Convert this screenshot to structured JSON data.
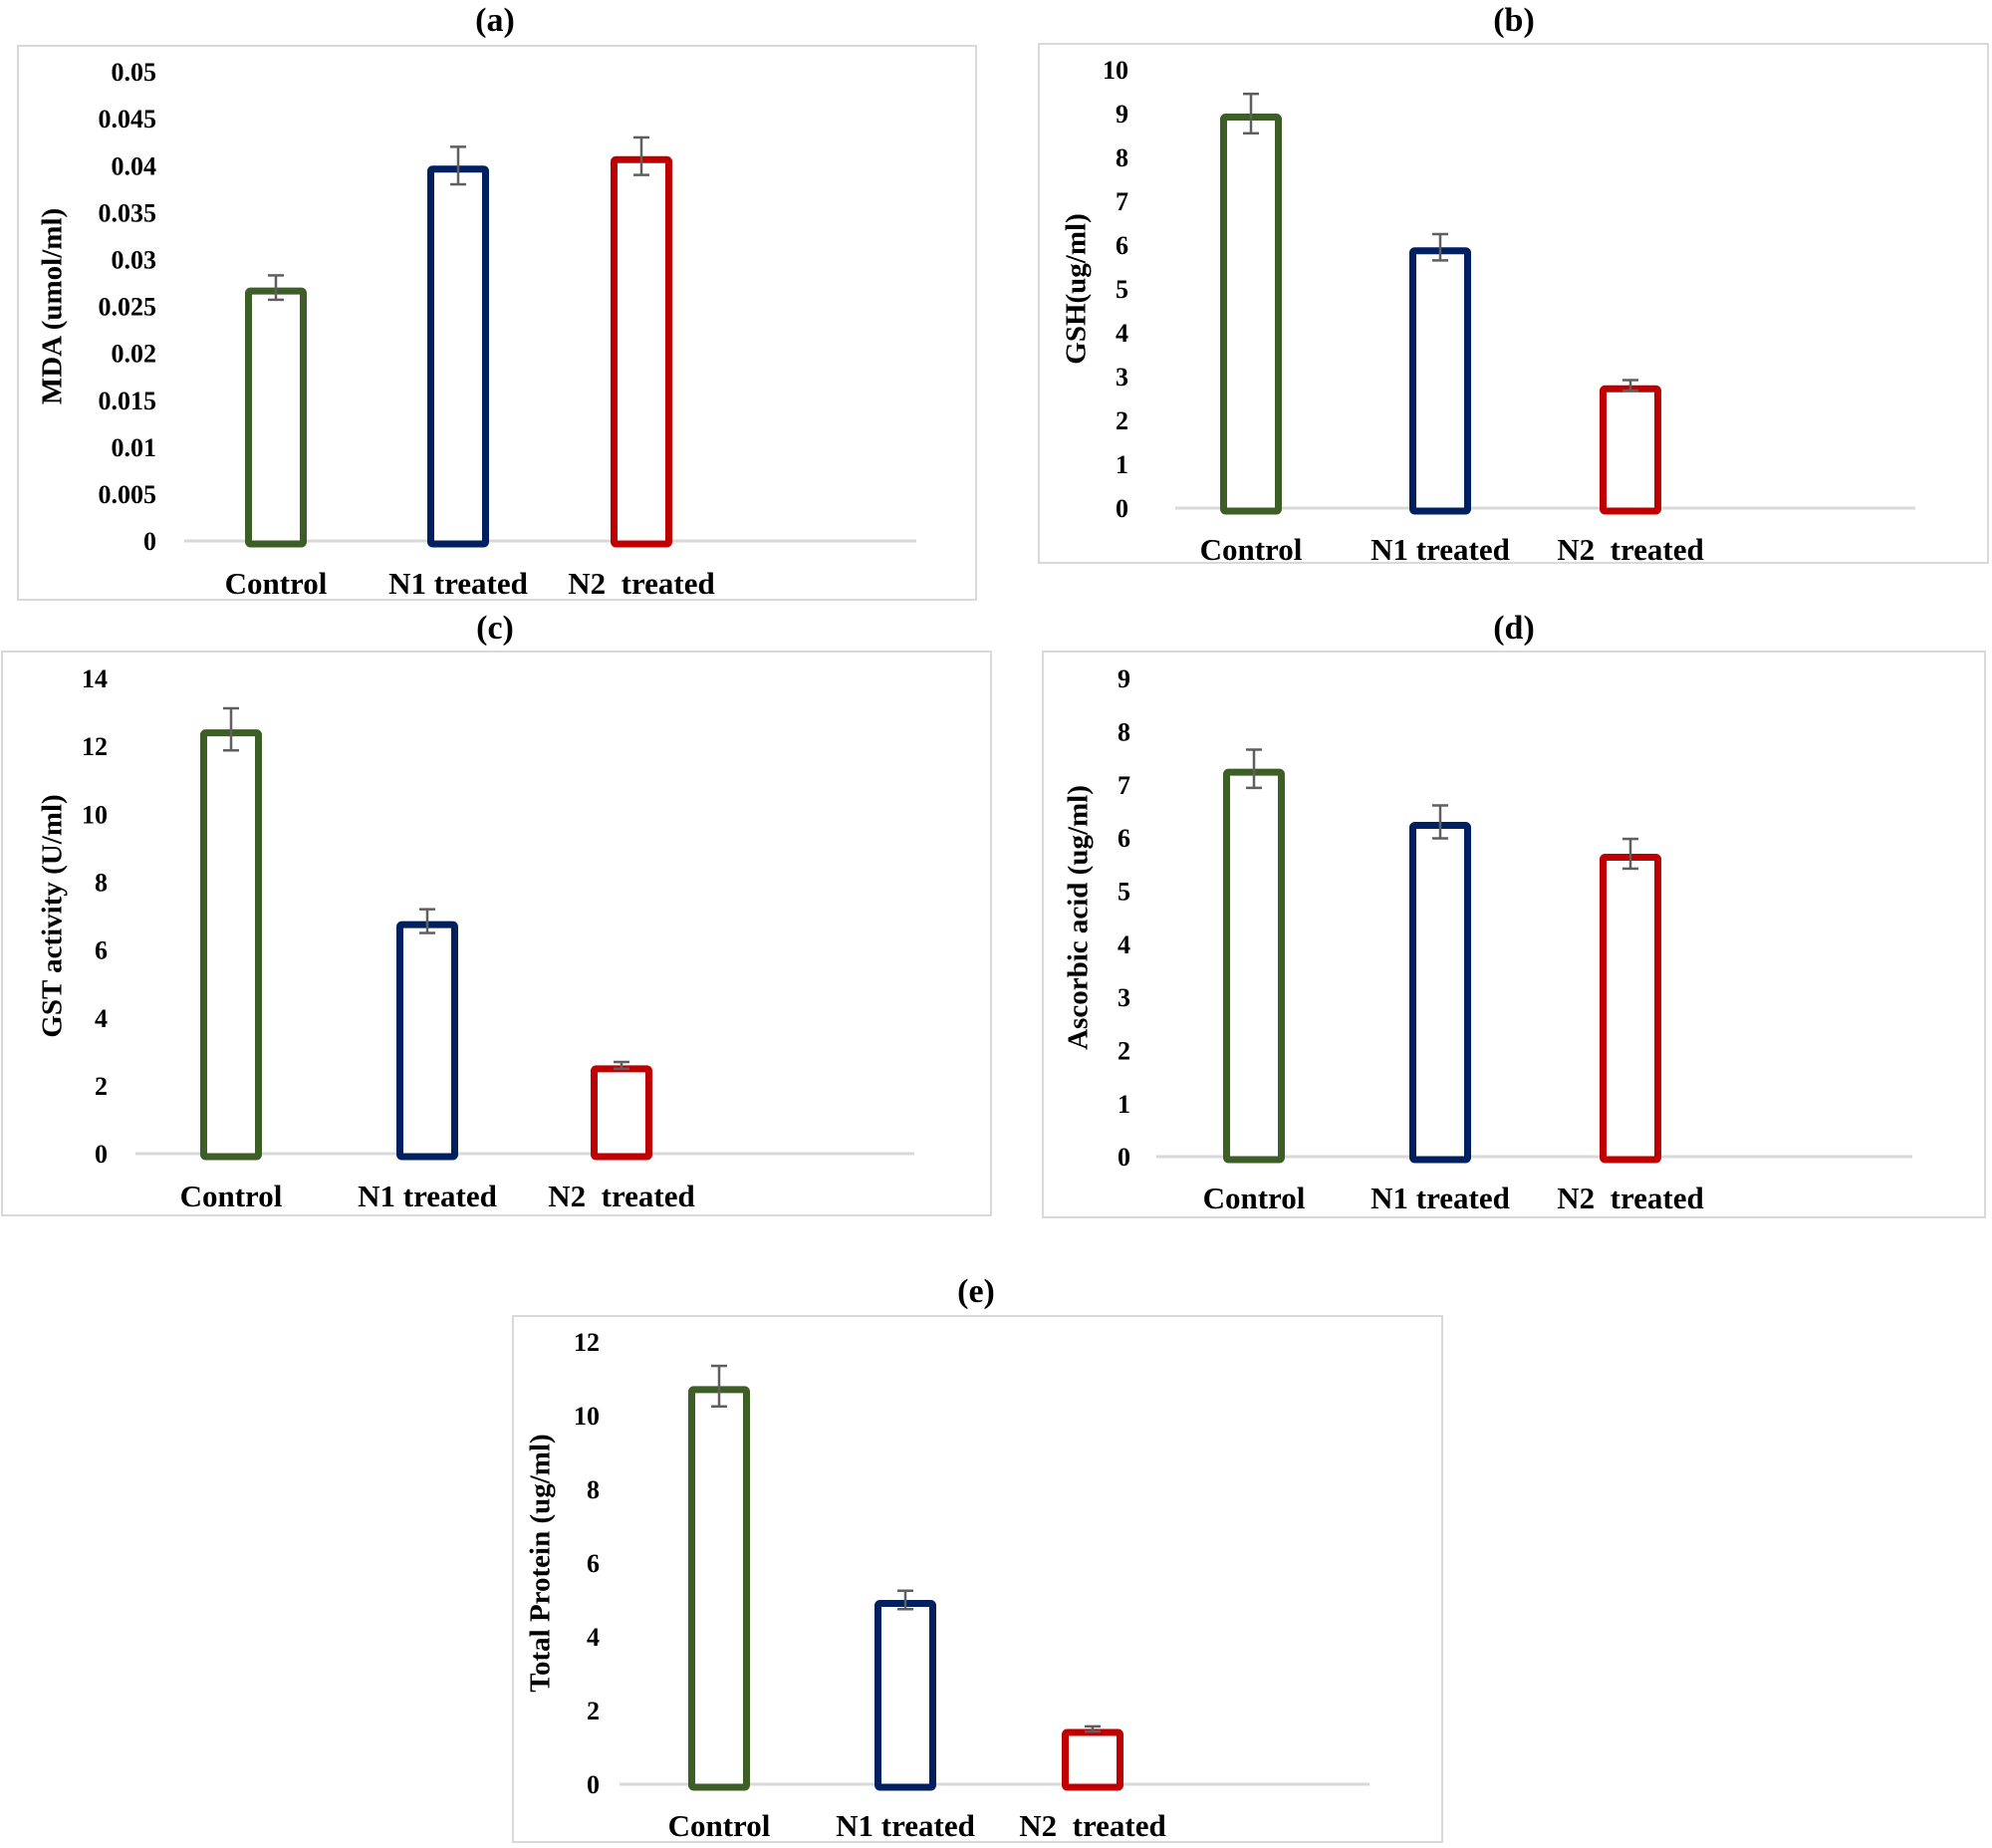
{
  "figure": {
    "panels": [
      "(a)",
      "(b)",
      "(c)",
      "(d)",
      "(e)"
    ]
  },
  "colors": {
    "control": "#3e5e27",
    "n1": "#002060",
    "n2": "#c00000",
    "error_bar": "#5f5f5f",
    "axis": "#d9d9d9",
    "frame": "#d9d9d9"
  },
  "chart_data": [
    {
      "id": "a",
      "panel_label": "(a)",
      "type": "bar",
      "title": "",
      "xlabel": "",
      "ylabel": "MDA (umol/ml)",
      "categories": [
        "Control",
        "N1 treated",
        "N2  treated"
      ],
      "values": [
        0.027,
        0.04,
        0.041
      ],
      "errors": [
        0.0013,
        0.002,
        0.002
      ],
      "ylim": [
        0,
        0.05
      ],
      "yticks": [
        "0",
        "0.005",
        "0.01",
        "0.015",
        "0.02",
        "0.025",
        "0.03",
        "0.035",
        "0.04",
        "0.045",
        "0.05"
      ],
      "ytick_values": [
        0,
        0.005,
        0.01,
        0.015,
        0.02,
        0.025,
        0.03,
        0.035,
        0.04,
        0.045,
        0.05
      ],
      "grid": false,
      "legend": "none"
    },
    {
      "id": "b",
      "panel_label": "(b)",
      "type": "bar",
      "title": "",
      "xlabel": "",
      "ylabel": "GSH(ug/ml)",
      "categories": [
        "Control",
        "N1 treated",
        "N2  treated"
      ],
      "values": [
        9.0,
        5.95,
        2.8
      ],
      "errors": [
        0.45,
        0.3,
        0.12
      ],
      "ylim": [
        0,
        10
      ],
      "yticks": [
        "0",
        "1",
        "2",
        "3",
        "4",
        "5",
        "6",
        "7",
        "8",
        "9",
        "10"
      ],
      "ytick_values": [
        0,
        1,
        2,
        3,
        4,
        5,
        6,
        7,
        8,
        9,
        10
      ],
      "grid": false,
      "legend": "none"
    },
    {
      "id": "c",
      "panel_label": "(c)",
      "type": "bar",
      "title": "",
      "xlabel": "",
      "ylabel": "GST activity (U/ml)",
      "categories": [
        "Control",
        "N1 treated",
        "N2  treated"
      ],
      "values": [
        12.5,
        6.85,
        2.6
      ],
      "errors": [
        0.62,
        0.35,
        0.1
      ],
      "ylim": [
        0,
        14
      ],
      "yticks": [
        "0",
        "2",
        "4",
        "6",
        "8",
        "10",
        "12",
        "14"
      ],
      "ytick_values": [
        0,
        2,
        4,
        6,
        8,
        10,
        12,
        14
      ],
      "grid": false,
      "legend": "none"
    },
    {
      "id": "d",
      "panel_label": "(d)",
      "type": "bar",
      "title": "",
      "xlabel": "",
      "ylabel": "Ascorbic acid (ug/ml)",
      "categories": [
        "Control",
        "N1 treated",
        "N2  treated"
      ],
      "values": [
        7.3,
        6.3,
        5.7
      ],
      "errors": [
        0.36,
        0.31,
        0.28
      ],
      "ylim": [
        0,
        9
      ],
      "yticks": [
        "0",
        "1",
        "2",
        "3",
        "4",
        "5",
        "6",
        "7",
        "8",
        "9"
      ],
      "ytick_values": [
        0,
        1,
        2,
        3,
        4,
        5,
        6,
        7,
        8,
        9
      ],
      "grid": false,
      "legend": "none"
    },
    {
      "id": "e",
      "panel_label": "(e)",
      "type": "bar",
      "title": "",
      "xlabel": "",
      "ylabel": "Total Protein (ug/ml)",
      "categories": [
        "Control",
        "N1 treated",
        "N2  treated"
      ],
      "values": [
        10.8,
        5.0,
        1.5
      ],
      "errors": [
        0.55,
        0.25,
        0.07
      ],
      "ylim": [
        0,
        12
      ],
      "yticks": [
        "0",
        "2",
        "4",
        "6",
        "8",
        "10",
        "12"
      ],
      "ytick_values": [
        0,
        2,
        4,
        6,
        8,
        10,
        12
      ],
      "grid": false,
      "legend": "none"
    }
  ]
}
